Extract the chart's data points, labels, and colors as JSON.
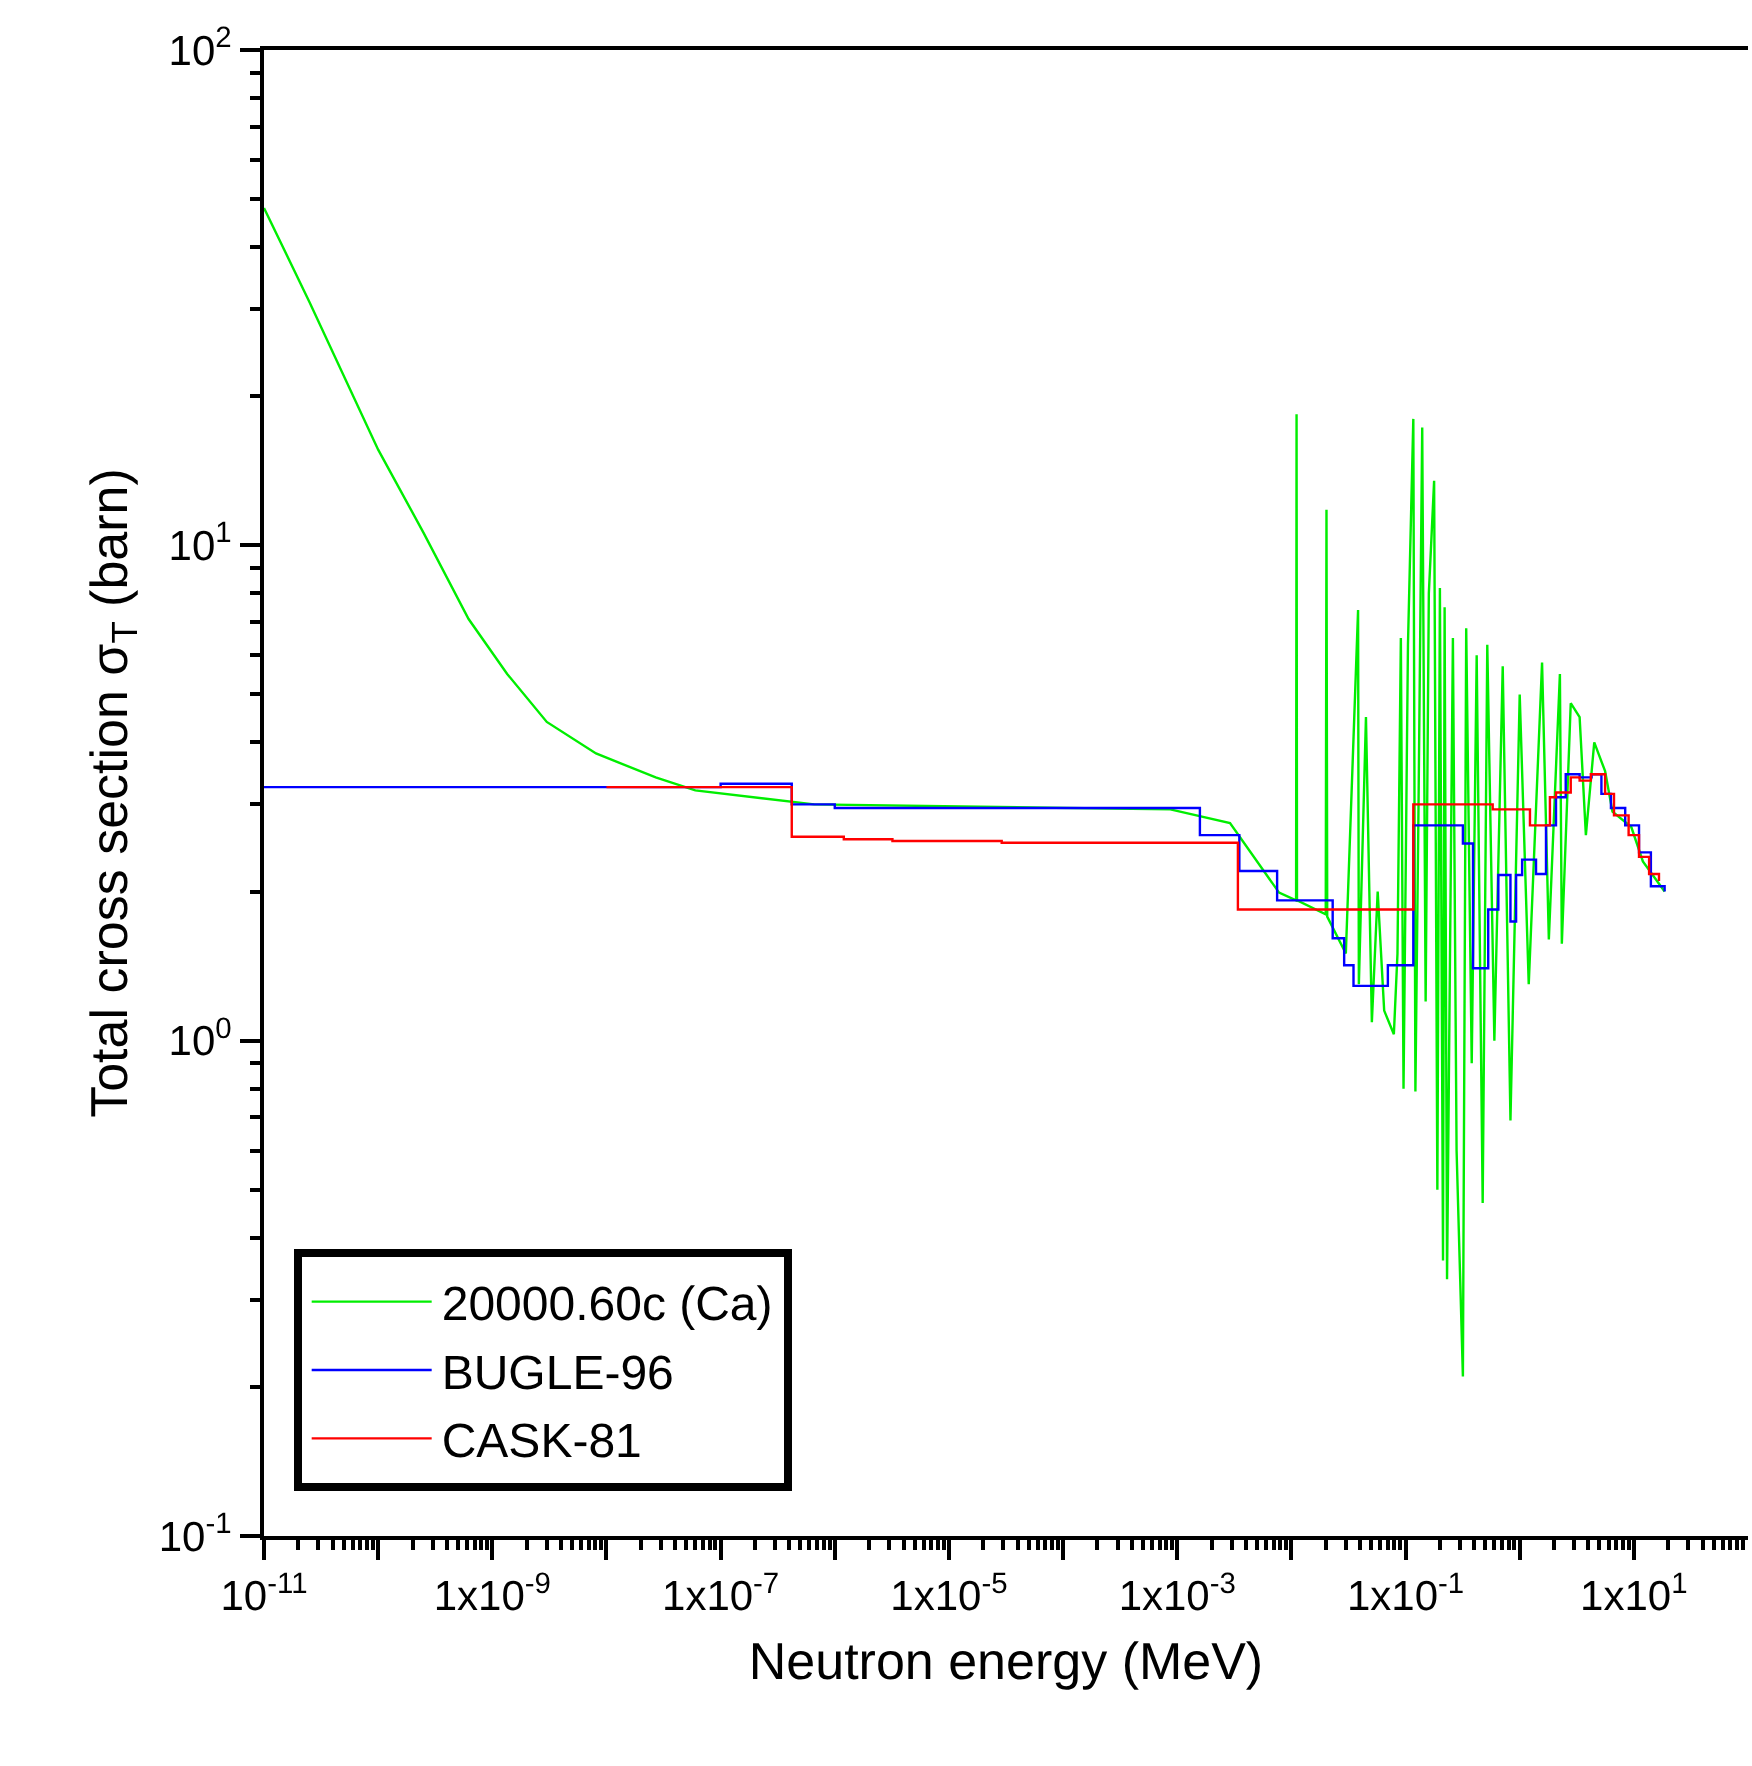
{
  "chart_data": {
    "type": "line",
    "xlabel": "Neutron energy (MeV)",
    "ylabel": "Total cross section σ$_{T}$ (barn)",
    "log": "xy",
    "legend": "bottom left",
    "xlim": [
      1e-11,
      100
    ],
    "ylim": [
      0.1,
      100
    ],
    "xticks": [
      {
        "value": 1e-11,
        "label": "10$^{-11}$"
      },
      {
        "value": 1e-10,
        "label": null
      },
      {
        "value": 1e-09,
        "label": "1x10$^{-9}$"
      },
      {
        "value": 1e-08,
        "label": null
      },
      {
        "value": 1e-07,
        "label": "1x10$^{-7}$"
      },
      {
        "value": 1e-06,
        "label": null
      },
      {
        "value": 1e-05,
        "label": "1x10$^{-5}$"
      },
      {
        "value": 0.0001,
        "label": null
      },
      {
        "value": 0.001,
        "label": "1x10$^{-3}$"
      },
      {
        "value": 0.01,
        "label": null
      },
      {
        "value": 0.1,
        "label": "1x10$^{-1}$"
      },
      {
        "value": 1,
        "label": null
      },
      {
        "value": 10,
        "label": "1x10$^{1}$"
      }
    ],
    "yticks": [
      {
        "value": 0.1,
        "label": "10$^{-1}$"
      },
      {
        "value": 1,
        "label": "10$^{0}$"
      },
      {
        "value": 10,
        "label": "10$^{1}$"
      },
      {
        "value": 100,
        "label": "10$^{2}$"
      }
    ],
    "series": [
      {
        "name": "20000.60c (Ca)",
        "color": "#00ee00",
        "x": [
          1e-11,
          2.5e-11,
          1e-10,
          2.5e-10,
          6.2e-10,
          1.35e-09,
          3e-09,
          8.1e-09,
          2.7e-08,
          6e-08,
          6.6e-07,
          0.00087,
          0.0029,
          0.0078,
          0.011,
          0.0111,
          0.0112,
          0.02,
          0.0203,
          0.0206,
          0.03,
          0.0384,
          0.039,
          0.045,
          0.0507,
          0.057,
          0.065,
          0.079,
          0.085,
          0.091,
          0.096,
          0.105,
          0.117,
          0.122,
          0.13,
          0.14,
          0.15,
          0.16,
          0.178,
          0.19,
          0.2,
          0.213,
          0.22,
          0.231,
          0.26,
          0.28,
          0.318,
          0.34,
          0.38,
          0.42,
          0.474,
          0.52,
          0.6,
          0.71,
          0.83,
          1.0,
          1.2,
          1.57,
          1.8,
          2.25,
          2.34,
          2.8,
          3.35,
          3.8,
          4.5,
          5.6,
          6.5,
          9.5,
          12,
          18.6
        ],
        "values": [
          48,
          31,
          15.6,
          10.6,
          7.1,
          5.5,
          4.4,
          3.8,
          3.4,
          3.2,
          3.0,
          2.93,
          2.75,
          1.99,
          1.92,
          18.4,
          1.92,
          1.8,
          11.8,
          1.78,
          1.5,
          7.4,
          1.3,
          4.5,
          1.09,
          2.0,
          1.15,
          1.03,
          1.5,
          6.5,
          0.8,
          6.3,
          18,
          0.79,
          3,
          17.3,
          1.2,
          8,
          13.5,
          0.5,
          8.2,
          0.36,
          7.5,
          0.33,
          6.5,
          0.6,
          0.21,
          6.8,
          0.9,
          6,
          0.47,
          6.3,
          1.0,
          5.7,
          0.69,
          5,
          1.3,
          5.8,
          1.6,
          5.5,
          1.57,
          4.8,
          4.5,
          2.6,
          4,
          3.5,
          2.9,
          2.7,
          2.3,
          2.0
        ]
      },
      {
        "name": "BUGLE-96",
        "type": "step",
        "color": "#0000ff",
        "x": [
          1e-11,
          1e-07,
          4.2e-07,
          1e-06,
          0.00158,
          0.0035,
          0.0075,
          0.023,
          0.029,
          0.035,
          0.07,
          0.117,
          0.318,
          0.39,
          0.53,
          0.65,
          0.83,
          0.93,
          1.05,
          1.39,
          1.7,
          2.08,
          2.53,
          3.35,
          4.26,
          5.2,
          6.3,
          8.4,
          11.1,
          14.1,
          18.6
        ],
        "values": [
          3.25,
          3.3,
          3.0,
          2.95,
          2.6,
          2.2,
          1.92,
          1.61,
          1.42,
          1.29,
          1.42,
          2.72,
          2.5,
          1.4,
          1.84,
          2.16,
          1.74,
          2.16,
          2.32,
          2.17,
          2.72,
          3.1,
          3.45,
          3.4,
          3.45,
          3.15,
          2.95,
          2.72,
          2.4,
          2.05,
          2.0
        ]
      },
      {
        "name": "CASK-81",
        "type": "step",
        "color": "#ff0000",
        "x": [
          1e-08,
          4.2e-07,
          1.2e-06,
          3.2e-06,
          2.9e-05,
          0.0034,
          0.117,
          0.58,
          1.23,
          1.84,
          2.08,
          2.8,
          3.35,
          4.2,
          5.6,
          6.7,
          9.0,
          11.1,
          13.6,
          16.6
        ],
        "values": [
          3.25,
          2.58,
          2.55,
          2.53,
          2.51,
          1.84,
          3.0,
          2.93,
          2.72,
          3.1,
          3.17,
          3.4,
          3.35,
          3.45,
          3.15,
          2.85,
          2.6,
          2.35,
          2.17,
          2.1
        ]
      }
    ]
  }
}
